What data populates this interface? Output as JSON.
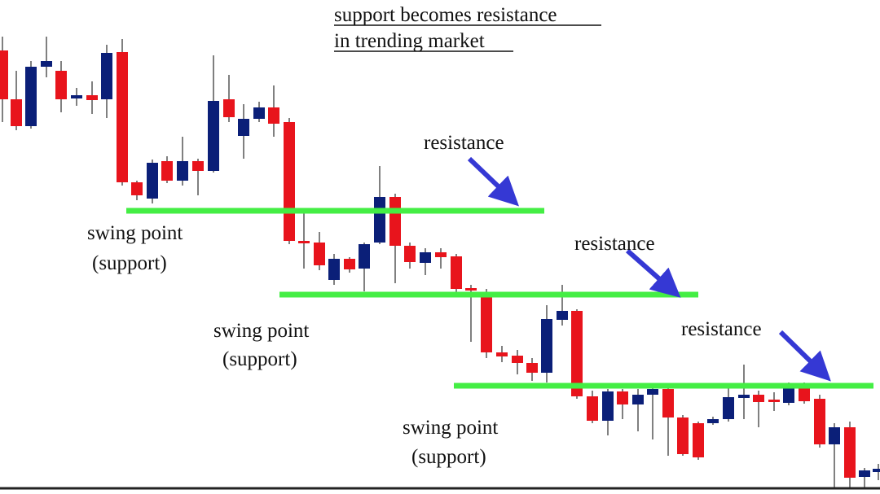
{
  "title": {
    "line1": "support becomes resistance",
    "line2": "in trending market"
  },
  "annotations": [
    {
      "resistance": "resistance",
      "swing": "swing point",
      "support": "(support)"
    },
    {
      "resistance": "resistance",
      "swing": "swing point",
      "support": "(support)"
    },
    {
      "resistance": "resistance",
      "swing": "swing point",
      "support": "(support)"
    }
  ]
}
